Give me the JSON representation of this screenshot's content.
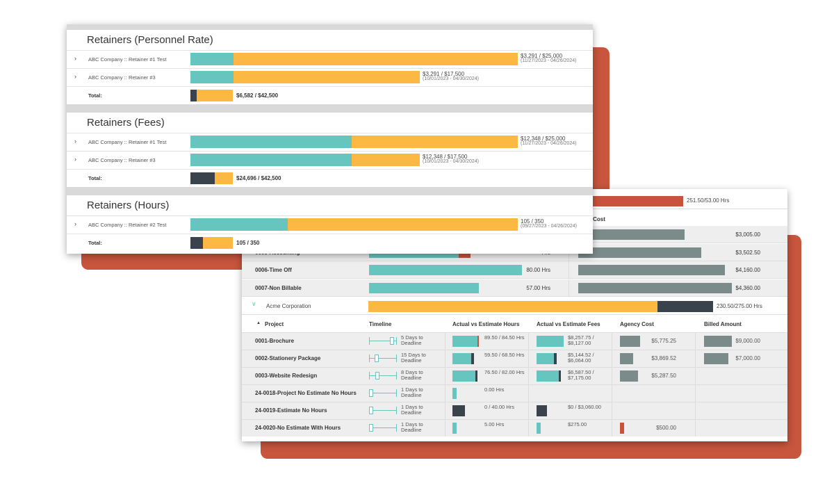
{
  "retainers": [
    {
      "title": "Retainers (Personnel Rate)",
      "rows": [
        {
          "name": "ABC Company :: Retainer #1 Test",
          "amount": "$3,291 / $25,000",
          "dates": "(11/27/2023 - 04/26/2024)"
        },
        {
          "name": "ABC Company :: Retainer #3",
          "amount": "$3,291 / $17,500",
          "dates": "(10/01/2023 - 04/30/2024)"
        }
      ],
      "total_label": "Total:",
      "total": "$6,582 / $42,500"
    },
    {
      "title": "Retainers (Fees)",
      "rows": [
        {
          "name": "ABC Company :: Retainer #1 Test",
          "amount": "$12,348 / $25,000",
          "dates": "(11/27/2023 - 04/26/2024)"
        },
        {
          "name": "ABC Company :: Retainer #3",
          "amount": "$12,348 / $17,500",
          "dates": "(10/01/2023 - 04/30/2024)"
        }
      ],
      "total_label": "Total:",
      "total": "$24,696 / $42,500"
    },
    {
      "title": "Retainers (Hours)",
      "rows": [
        {
          "name": "ABC Company :: Retainer #2 Test",
          "amount": "105 / 350",
          "dates": "(09/27/2023 - 04/26/2024)"
        }
      ],
      "total_label": "Total:",
      "total": "105 / 350"
    }
  ],
  "overview": {
    "top_total": "251.50/53.00 Hrs",
    "column": "Agency Cost",
    "rows": [
      {
        "cost": "$3,005.00"
      },
      {
        "name": "0005-Accounting",
        "hours": "Hrs",
        "cost": "$3,502.50"
      },
      {
        "name": "0006-Time Off",
        "hours": "80.00 Hrs",
        "cost": "$4,160.00"
      },
      {
        "name": "0007-Non Billable",
        "hours": "57.00 Hrs",
        "cost": "$4,360.00"
      }
    ],
    "client": {
      "name": "Acme Corporation",
      "hours": "230.50/275.00 Hrs"
    },
    "columns": [
      "Project",
      "Timeline",
      "Actual vs Estimate Hours",
      "Actual vs Estimate Fees",
      "Agency Cost",
      "Billed Amount"
    ],
    "projects": [
      {
        "name": "0001-Brochure",
        "deadline": "5 Days to Deadline",
        "hours": "89.50 / 84.50 Hrs",
        "fees": "$8,257.75 / $8,127.00",
        "agency": "$5,775.25",
        "billed": "$9,000.00"
      },
      {
        "name": "0002-Stationery Package",
        "deadline": "15 Days to Deadline",
        "hours": "59.50 / 68.50 Hrs",
        "fees": "$5,144.52 / $6,064.00",
        "agency": "$3,869.52",
        "billed": "$7,000.00"
      },
      {
        "name": "0003-Website Redesign",
        "deadline": "8 Days to Deadline",
        "hours": "76.50 / 82.00 Hrs",
        "fees": "$6,587.50 / $7,175.00",
        "agency": "$5,287.50"
      },
      {
        "name": "24-0018-Project No Estimate No Hours",
        "deadline": "1 Days to Deadline",
        "hours": "0.00 Hrs"
      },
      {
        "name": "24-0019-Estimate No Hours",
        "deadline": "1 Days to Deadline",
        "hours": "0 / 40.00 Hrs",
        "fees": "$0 / $3,060.00"
      },
      {
        "name": "24-0020-No Estimate With Hours",
        "deadline": "1 Days to Deadline",
        "hours": "5.00 Hrs",
        "fees": "$275.00",
        "agency": "$500.00"
      }
    ]
  }
}
